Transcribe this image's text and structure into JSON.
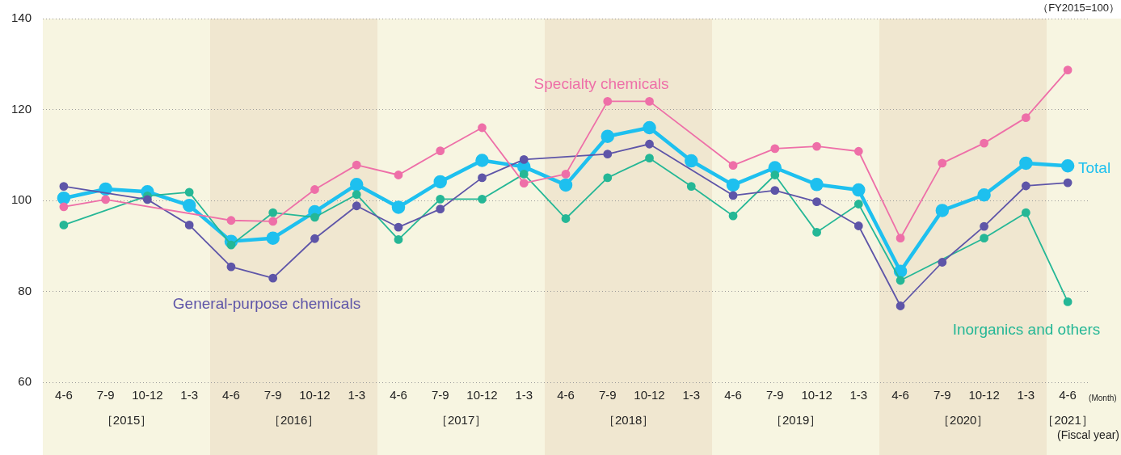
{
  "chart_data": {
    "type": "line",
    "categories": [
      "4-6",
      "7-9",
      "10-12",
      "1-3",
      "4-6",
      "7-9",
      "10-12",
      "1-3",
      "4-6",
      "7-9",
      "10-12",
      "1-3",
      "4-6",
      "7-9",
      "10-12",
      "1-3",
      "4-6",
      "7-9",
      "10-12",
      "1-3",
      "4-6",
      "7-9",
      "10-12",
      "1-3",
      "4-6"
    ],
    "series": [
      {
        "name": "Specialty chemicals",
        "color": "#ee6fa8",
        "values": [
          98.6,
          100.2,
          null,
          null,
          95.6,
          95.4,
          102.4,
          107.8,
          105.6,
          110.9,
          116.0,
          103.8,
          105.8,
          121.8,
          121.8,
          null,
          107.7,
          111.4,
          111.9,
          110.8,
          91.7,
          108.2,
          112.6,
          118.2,
          128.7
        ]
      },
      {
        "name": "General-purpose chemicals",
        "color": "#5e55a8",
        "values": [
          103.1,
          null,
          100.2,
          94.6,
          85.4,
          82.9,
          91.6,
          98.8,
          94.1,
          98.1,
          105.0,
          109.0,
          null,
          110.2,
          112.4,
          null,
          101.1,
          102.2,
          99.7,
          94.4,
          76.8,
          86.4,
          94.3,
          103.2,
          103.9
        ]
      },
      {
        "name": "Inorganics and others",
        "color": "#25b796",
        "values": [
          94.6,
          null,
          101.0,
          101.8,
          90.2,
          97.3,
          96.3,
          101.3,
          91.4,
          100.3,
          100.3,
          105.8,
          96.0,
          105.0,
          109.3,
          103.1,
          96.6,
          105.6,
          93.0,
          99.2,
          82.4,
          null,
          91.7,
          97.3,
          77.7
        ]
      },
      {
        "name": "Total",
        "color": "#1ec0ef",
        "values": [
          100.5,
          102.5,
          101.9,
          98.9,
          91.0,
          91.7,
          97.5,
          103.5,
          98.5,
          104.1,
          108.8,
          107.4,
          103.4,
          114.1,
          116.0,
          108.7,
          103.4,
          107.2,
          103.5,
          102.3,
          84.4,
          97.8,
          101.2,
          108.2,
          107.6
        ]
      }
    ],
    "ylim": [
      60,
      140
    ],
    "yticks": [
      60,
      80,
      100,
      120,
      140
    ],
    "grid": "y",
    "legend": false,
    "marker": "circle",
    "line_style": "solid",
    "annotations": [
      "（FY2015=100）",
      "(Month)",
      "(Fiscal year)",
      "［2015］",
      "［2016］",
      "［2017］",
      "［2018］",
      "［2019］",
      "［2020］",
      "［2021］"
    ]
  }
}
